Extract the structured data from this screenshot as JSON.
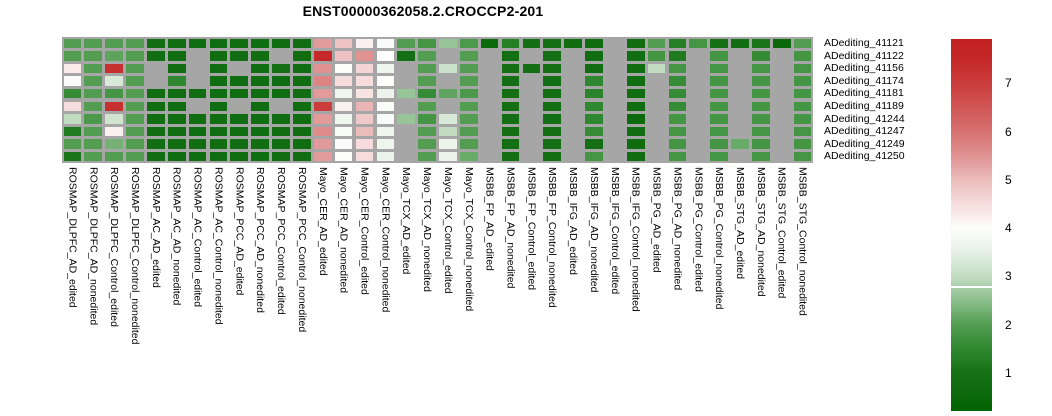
{
  "title": "ENST00000362058.2.CROCCP2-201",
  "chart_data": {
    "type": "heatmap",
    "title": "ENST00000362058.2.CROCCP2-201",
    "legend_position": "right",
    "na_color": "#a6a6a6",
    "rows": [
      "ADediting_41121",
      "ADediting_41122",
      "ADediting_41156",
      "ADediting_41174",
      "ADediting_41181",
      "ADediting_41189",
      "ADediting_41244",
      "ADediting_41247",
      "ADediting_41249",
      "ADediting_41250"
    ],
    "columns": [
      "ROSMAP_DLPFC_AD_edited",
      "ROSMAP_DLPFC_AD_nonedited",
      "ROSMAP_DLPFC_Control_edited",
      "ROSMAP_DLPFC_Control_nonedited",
      "ROSMAP_AC_AD_edited",
      "ROSMAP_AC_AD_nonedited",
      "ROSMAP_AC_Control_edited",
      "ROSMAP_AC_Control_nonedited",
      "ROSMAP_PCC_AD_edited",
      "ROSMAP_PCC_AD_nonedited",
      "ROSMAP_PCC_Control_edited",
      "ROSMAP_PCC_Control_nonedited",
      "Mayo_CER_AD_edited",
      "Mayo_CER_AD_nonedited",
      "Mayo_CER_Control_edited",
      "Mayo_CER_Control_nonedited",
      "Mayo_TCX_AD_edited",
      "Mayo_TCX_AD_nonedited",
      "Mayo_TCX_Control_edited",
      "Mayo_TCX_Control_nonedited",
      "MSBB_FP_AD_edited",
      "MSBB_FP_AD_nonedited",
      "MSBB_FP_Control_edited",
      "MSBB_FP_Control_nonedited",
      "MSBB_IFG_AD_edited",
      "MSBB_IFG_AD_nonedited",
      "MSBB_IFG_Control_edited",
      "MSBB_IFG_Control_nonedited",
      "MSBB_PG_AD_edited",
      "MSBB_PG_AD_nonedited",
      "MSBB_PG_Control_edited",
      "MSBB_PG_Control_nonedited",
      "MSBB_STG_AD_edited",
      "MSBB_STG_AD_nonedited",
      "MSBB_STG_Control_edited",
      "MSBB_STG_Control_nonedited"
    ],
    "values": [
      [
        2.0,
        2.0,
        2.0,
        2.0,
        0.8,
        0.8,
        0.8,
        0.8,
        0.8,
        0.8,
        0.8,
        0.8,
        5.4,
        4.9,
        4.2,
        3.9,
        2.0,
        1.8,
        2.6,
        1.9,
        0.6,
        1.3,
        0.9,
        0.9,
        0.7,
        0.7,
        null,
        0.7,
        2.0,
        1.3,
        1.8,
        1.0,
        0.8,
        1.1,
        0.5,
        2.0
      ],
      [
        2.0,
        2.0,
        2.1,
        2.0,
        0.8,
        0.8,
        null,
        0.8,
        0.8,
        0.8,
        null,
        0.8,
        7.5,
        4.9,
        5.5,
        4.0,
        0.9,
        2.0,
        null,
        2.0,
        null,
        0.9,
        null,
        0.9,
        null,
        0.8,
        null,
        0.8,
        1.8,
        1.2,
        null,
        1.8,
        null,
        1.6,
        null,
        1.8
      ],
      [
        4.3,
        2.0,
        7.3,
        2.0,
        null,
        0.8,
        null,
        0.8,
        null,
        0.8,
        1.0,
        0.8,
        5.5,
        4.0,
        4.6,
        3.7,
        null,
        2.0,
        3.1,
        2.0,
        null,
        0.9,
        0.9,
        0.9,
        null,
        0.8,
        null,
        0.7,
        3.0,
        1.8,
        null,
        1.8,
        null,
        1.8,
        null,
        1.8
      ],
      [
        4.05,
        2.0,
        3.3,
        2.0,
        null,
        1.5,
        null,
        0.8,
        0.8,
        0.8,
        0.8,
        0.8,
        5.7,
        4.5,
        4.5,
        4.0,
        null,
        2.0,
        null,
        2.0,
        null,
        0.9,
        null,
        0.9,
        null,
        1.5,
        null,
        0.8,
        null,
        1.6,
        null,
        1.8,
        null,
        1.8,
        null,
        1.8
      ],
      [
        1.6,
        2.0,
        1.8,
        2.0,
        0.8,
        0.8,
        0.8,
        0.8,
        0.8,
        0.8,
        0.8,
        0.8,
        5.4,
        3.7,
        4.4,
        3.6,
        2.6,
        1.6,
        2.1,
        1.9,
        null,
        0.9,
        null,
        0.9,
        null,
        1.4,
        null,
        0.8,
        null,
        1.6,
        null,
        1.8,
        null,
        1.8,
        null,
        1.8
      ],
      [
        4.5,
        2.0,
        7.3,
        2.0,
        0.8,
        0.8,
        null,
        0.8,
        null,
        0.8,
        null,
        0.8,
        7.0,
        4.2,
        5.1,
        3.9,
        null,
        2.0,
        null,
        2.0,
        null,
        0.9,
        null,
        0.9,
        null,
        1.5,
        null,
        0.8,
        null,
        1.6,
        null,
        1.8,
        null,
        1.8,
        null,
        1.8
      ],
      [
        3.0,
        1.9,
        3.2,
        2.0,
        0.8,
        0.8,
        0.8,
        0.8,
        0.8,
        0.8,
        0.8,
        0.8,
        5.4,
        3.7,
        4.8,
        3.9,
        2.6,
        1.8,
        3.3,
        2.0,
        null,
        0.9,
        null,
        0.9,
        null,
        1.5,
        null,
        0.6,
        null,
        1.8,
        null,
        1.8,
        null,
        1.8,
        null,
        1.8
      ],
      [
        1.2,
        2.0,
        4.2,
        2.0,
        0.8,
        0.8,
        0.8,
        0.8,
        0.8,
        0.8,
        0.8,
        0.8,
        5.6,
        3.9,
        5.0,
        3.7,
        null,
        2.0,
        3.0,
        2.0,
        null,
        0.9,
        null,
        0.9,
        null,
        1.6,
        null,
        0.8,
        null,
        1.8,
        null,
        1.8,
        null,
        1.8,
        null,
        1.8
      ],
      [
        2.0,
        2.0,
        2.3,
        2.0,
        0.8,
        0.8,
        0.8,
        0.8,
        0.8,
        0.8,
        0.8,
        0.8,
        5.4,
        3.9,
        4.5,
        3.7,
        null,
        2.0,
        3.6,
        2.0,
        null,
        0.9,
        null,
        0.9,
        null,
        0.9,
        null,
        0.7,
        null,
        1.8,
        null,
        1.8,
        2.2,
        1.8,
        null,
        1.8
      ],
      [
        1.1,
        2.0,
        2.0,
        2.0,
        0.8,
        0.8,
        0.8,
        0.8,
        0.8,
        0.8,
        0.8,
        0.8,
        5.4,
        4.0,
        4.5,
        3.6,
        null,
        2.0,
        3.6,
        2.2,
        null,
        0.9,
        null,
        0.9,
        null,
        1.8,
        null,
        0.7,
        null,
        1.8,
        null,
        1.8,
        null,
        1.8,
        null,
        1.8
      ]
    ],
    "colormap": {
      "anchors": [
        [
          0.2,
          "#006400"
        ],
        [
          0.5,
          "#0a680a"
        ],
        [
          1.0,
          "#167116"
        ],
        [
          1.5,
          "#2f882f"
        ],
        [
          2.0,
          "#529d52"
        ],
        [
          2.5,
          "#8cbf8c"
        ],
        [
          3.0,
          "#c2dcc2"
        ],
        [
          3.5,
          "#e6f1e6"
        ],
        [
          4.0,
          "#fdfdfb"
        ],
        [
          4.5,
          "#f6dcdc"
        ],
        [
          5.0,
          "#ecbcbc"
        ],
        [
          5.5,
          "#e09292"
        ],
        [
          6.0,
          "#d77070"
        ],
        [
          6.5,
          "#d15555"
        ],
        [
          7.0,
          "#cb3c3c"
        ],
        [
          7.5,
          "#c52828"
        ],
        [
          8.0,
          "#c21f1f"
        ]
      ]
    },
    "colorbar": {
      "ticks": [
        7,
        6,
        5,
        4,
        3,
        2,
        1
      ],
      "domain_top": 7.92,
      "domain_bottom": 0.21,
      "seam_value": 2.78
    }
  }
}
